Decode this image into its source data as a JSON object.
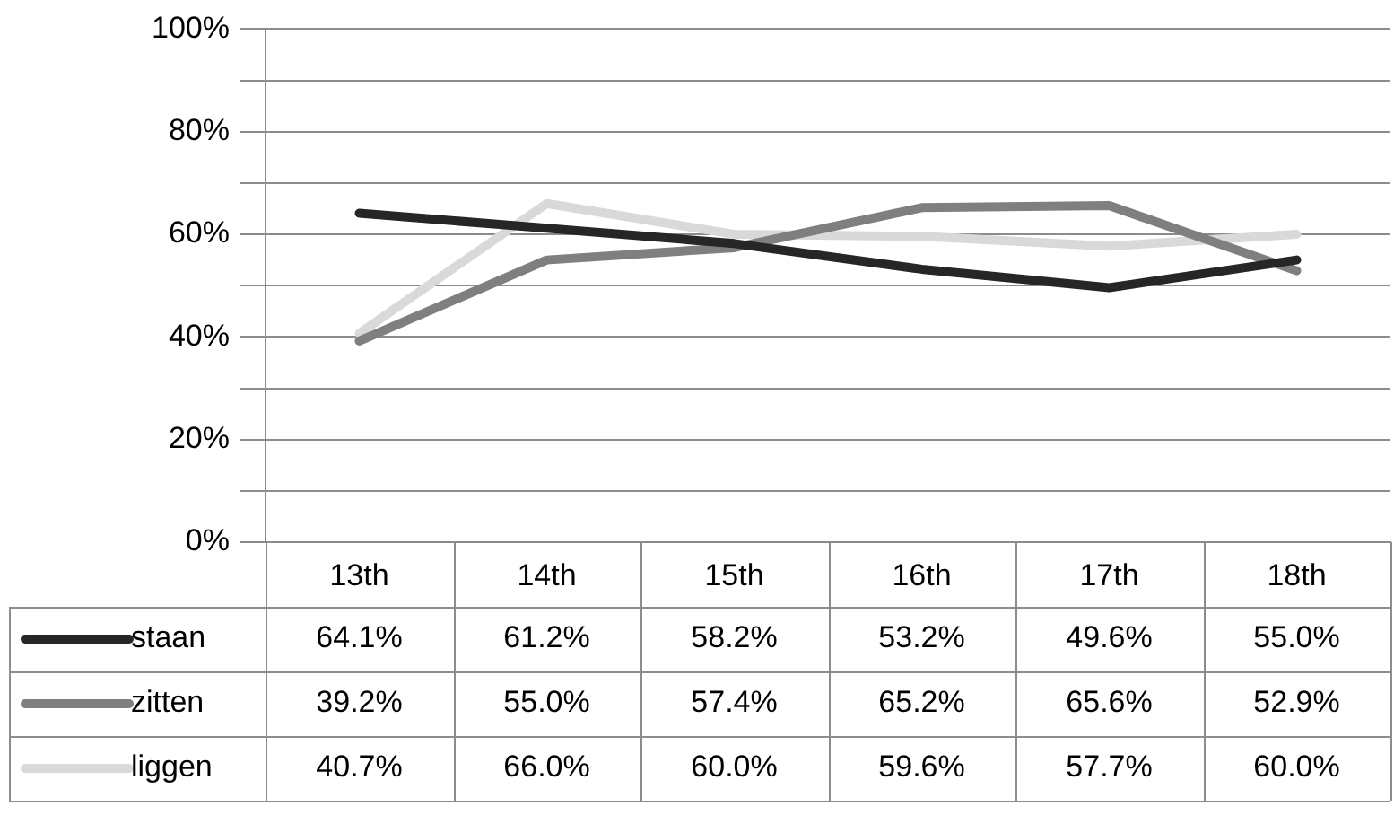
{
  "chart_data": {
    "type": "line",
    "categories": [
      "13th",
      "14th",
      "15th",
      "16th",
      "17th",
      "18th"
    ],
    "series": [
      {
        "name": "staan",
        "color": "#262626",
        "values": [
          64.1,
          61.2,
          58.2,
          53.2,
          49.6,
          55.0
        ],
        "value_labels": [
          "64.1%",
          "61.2%",
          "58.2%",
          "53.2%",
          "49.6%",
          "55.0%"
        ]
      },
      {
        "name": "zitten",
        "color": "#7f7f7f",
        "values": [
          39.2,
          55.0,
          57.4,
          65.2,
          65.6,
          52.9
        ],
        "value_labels": [
          "39.2%",
          "55.0%",
          "57.4%",
          "65.2%",
          "65.6%",
          "52.9%"
        ]
      },
      {
        "name": "liggen",
        "color": "#d9d9d9",
        "values": [
          40.7,
          66.0,
          60.0,
          59.6,
          57.7,
          60.0
        ],
        "value_labels": [
          "40.7%",
          "66.0%",
          "60.0%",
          "59.6%",
          "57.7%",
          "60.0%"
        ]
      }
    ],
    "ylim": [
      0,
      100
    ],
    "yticks": [
      {
        "value": 0,
        "label": "0%"
      },
      {
        "value": 10,
        "label": null
      },
      {
        "value": 20,
        "label": "20%"
      },
      {
        "value": 30,
        "label": null
      },
      {
        "value": 40,
        "label": "40%"
      },
      {
        "value": 50,
        "label": null
      },
      {
        "value": 60,
        "label": "60%"
      },
      {
        "value": 70,
        "label": null
      },
      {
        "value": 80,
        "label": "80%"
      },
      {
        "value": 90,
        "label": null
      },
      {
        "value": 100,
        "label": "100%"
      }
    ],
    "grid": "y",
    "legend": "bottom",
    "marker": "none",
    "line_style": "solid"
  }
}
